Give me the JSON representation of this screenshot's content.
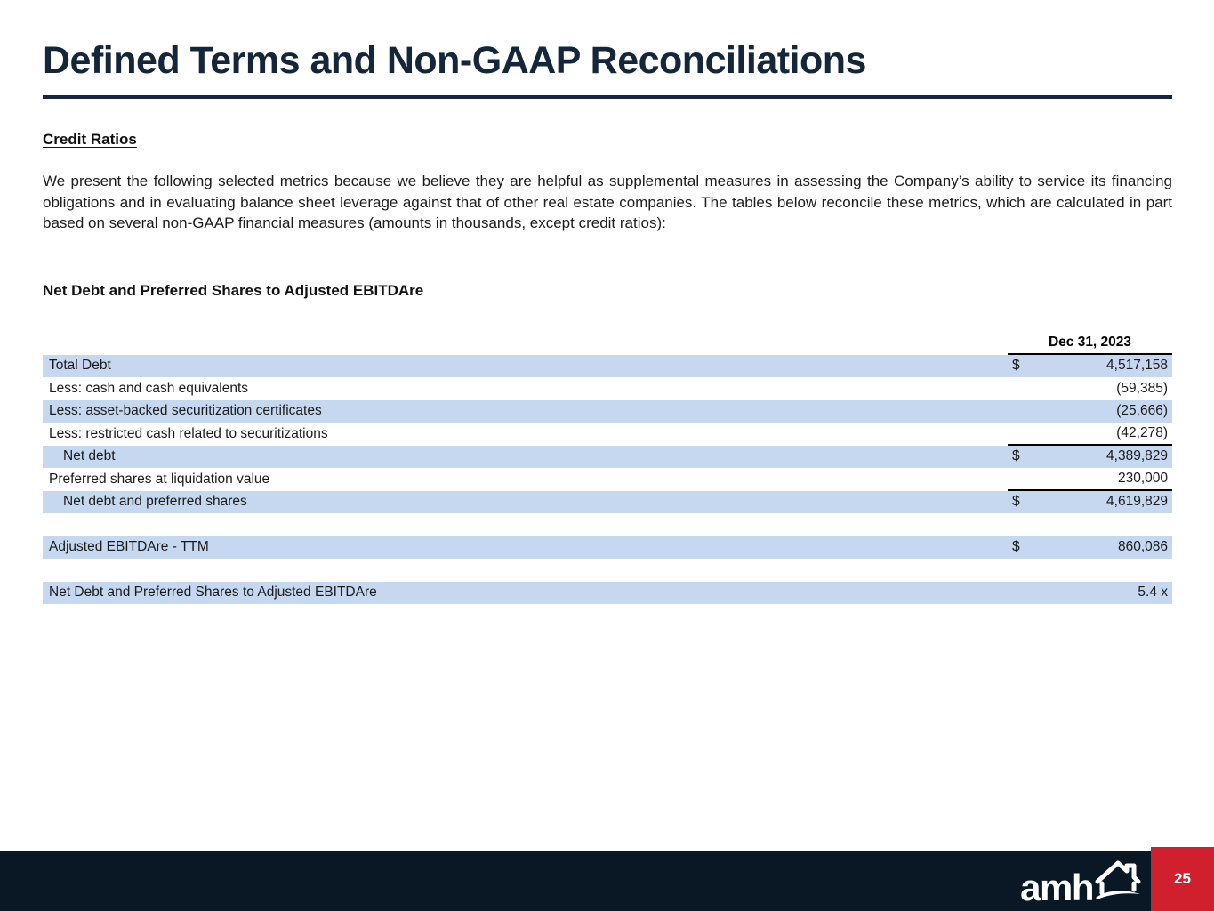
{
  "header": {
    "title": "Defined Terms and Non-GAAP Reconciliations"
  },
  "section": {
    "heading": "Credit Ratios",
    "paragraph": "We present the following selected metrics because we believe they are helpful as supplemental measures in assessing the Company’s ability to service its financing obligations and in evaluating balance sheet leverage against that of other real estate companies. The tables below reconcile these metrics, which are calculated in part based on several non-GAAP financial measures (amounts in thousands, except credit ratios):"
  },
  "table": {
    "title": "Net Debt and Preferred Shares to Adjusted EBITDAre",
    "column_header": "Dec 31, 2023",
    "rows": [
      {
        "label": "Total Debt",
        "dollar": "$",
        "value": "4,517,158",
        "shaded": true
      },
      {
        "label": "Less: cash and cash equivalents",
        "dollar": "",
        "value": "(59,385)",
        "shaded": false
      },
      {
        "label": "Less: asset-backed securitization certificates",
        "dollar": "",
        "value": "(25,666)",
        "shaded": true
      },
      {
        "label": "Less: restricted cash related to securitizations",
        "dollar": "",
        "value": "(42,278)",
        "shaded": false,
        "underline_below": true
      },
      {
        "label": "Net debt",
        "dollar": "$",
        "value": "4,389,829",
        "shaded": true,
        "indent": true
      },
      {
        "label": "Preferred shares at liquidation value",
        "dollar": "",
        "value": "230,000",
        "shaded": false,
        "underline_below": true
      },
      {
        "label": "Net debt and preferred shares",
        "dollar": "$",
        "value": "4,619,829",
        "shaded": true,
        "indent": true
      },
      {
        "spacer": true
      },
      {
        "label": "Adjusted EBITDAre - TTM",
        "dollar": "$",
        "value": "860,086",
        "shaded": true
      },
      {
        "spacer": true
      },
      {
        "label": "Net Debt and Preferred Shares to Adjusted EBITDAre",
        "dollar": "",
        "value": "5.4 x",
        "shaded": true
      }
    ]
  },
  "footer": {
    "logo_text": "amh",
    "logo_icon": "amh-house-icon",
    "page_number": "25"
  },
  "colors": {
    "title_navy": "#15263a",
    "footer_navy": "#0a1725",
    "row_blue": "#c5d8f0",
    "page_red": "#d0202e"
  }
}
